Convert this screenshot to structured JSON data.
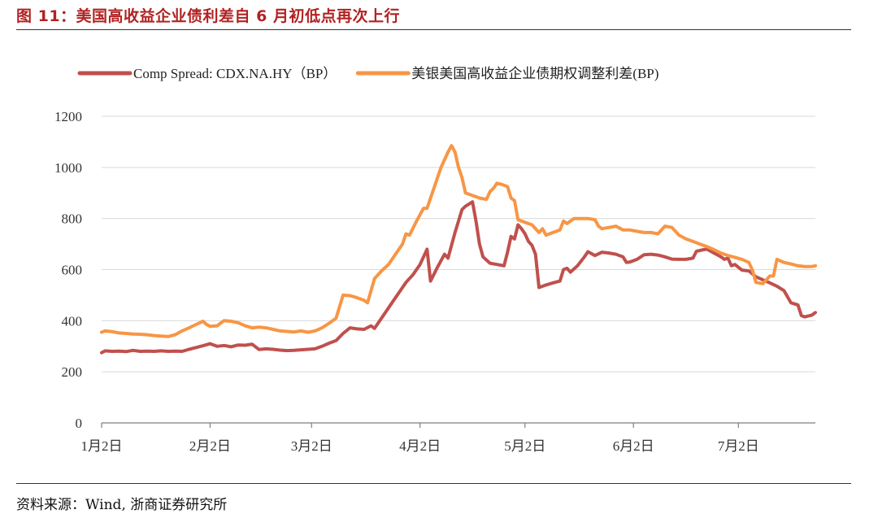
{
  "header": {
    "title": "图 11：美国高收益企业债利差自 6 月初低点再次上行"
  },
  "footer": {
    "source": "资料来源：Wind, 浙商证券研究所"
  },
  "chart_data": {
    "type": "line",
    "title": "",
    "xlabel": "",
    "ylabel": "",
    "ylim": [
      0,
      1200
    ],
    "yticks": [
      0,
      200,
      400,
      600,
      800,
      1000,
      1200
    ],
    "x_unit": "day index from 1月2日",
    "xlim": [
      0,
      204
    ],
    "xticks": [
      {
        "x": 0,
        "label": "1月2日"
      },
      {
        "x": 31,
        "label": "2月2日"
      },
      {
        "x": 60,
        "label": "3月2日"
      },
      {
        "x": 91,
        "label": "4月2日"
      },
      {
        "x": 121,
        "label": "5月2日"
      },
      {
        "x": 152,
        "label": "6月2日"
      },
      {
        "x": 182,
        "label": "7月2日"
      }
    ],
    "grid": true,
    "legend_position": "top",
    "series": [
      {
        "name": "Comp Spread: CDX.NA.HY（BP）",
        "color": "#c0504d",
        "points": [
          [
            0,
            275
          ],
          [
            1,
            282
          ],
          [
            3,
            280
          ],
          [
            5,
            281
          ],
          [
            7,
            279
          ],
          [
            9,
            284
          ],
          [
            11,
            280
          ],
          [
            13,
            281
          ],
          [
            15,
            280
          ],
          [
            17,
            282
          ],
          [
            19,
            280
          ],
          [
            21,
            281
          ],
          [
            23,
            280
          ],
          [
            25,
            288
          ],
          [
            27,
            295
          ],
          [
            29,
            302
          ],
          [
            31,
            310
          ],
          [
            33,
            300
          ],
          [
            35,
            303
          ],
          [
            37,
            298
          ],
          [
            39,
            305
          ],
          [
            41,
            304
          ],
          [
            43,
            308
          ],
          [
            45,
            287
          ],
          [
            47,
            290
          ],
          [
            49,
            288
          ],
          [
            51,
            285
          ],
          [
            53,
            283
          ],
          [
            55,
            284
          ],
          [
            57,
            286
          ],
          [
            59,
            288
          ],
          [
            61,
            290
          ],
          [
            63,
            300
          ],
          [
            65,
            312
          ],
          [
            67,
            322
          ],
          [
            69,
            350
          ],
          [
            71,
            372
          ],
          [
            73,
            368
          ],
          [
            75,
            366
          ],
          [
            77,
            380
          ],
          [
            78,
            370
          ],
          [
            79,
            390
          ],
          [
            81,
            430
          ],
          [
            83,
            470
          ],
          [
            85,
            510
          ],
          [
            87,
            550
          ],
          [
            89,
            580
          ],
          [
            91,
            620
          ],
          [
            93,
            680
          ],
          [
            94,
            555
          ],
          [
            96,
            610
          ],
          [
            98,
            660
          ],
          [
            99,
            645
          ],
          [
            101,
            745
          ],
          [
            103,
            835
          ],
          [
            104,
            848
          ],
          [
            106,
            865
          ],
          [
            107,
            790
          ],
          [
            108,
            700
          ],
          [
            109,
            650
          ],
          [
            111,
            625
          ],
          [
            113,
            620
          ],
          [
            115,
            615
          ],
          [
            116,
            668
          ],
          [
            117,
            730
          ],
          [
            118,
            720
          ],
          [
            119,
            775
          ],
          [
            120,
            760
          ],
          [
            121,
            740
          ],
          [
            122,
            710
          ],
          [
            123,
            695
          ],
          [
            124,
            660
          ],
          [
            125,
            530
          ],
          [
            127,
            540
          ],
          [
            129,
            548
          ],
          [
            131,
            555
          ],
          [
            132,
            600
          ],
          [
            133,
            605
          ],
          [
            134,
            590
          ],
          [
            136,
            615
          ],
          [
            138,
            650
          ],
          [
            139,
            670
          ],
          [
            141,
            655
          ],
          [
            143,
            668
          ],
          [
            145,
            665
          ],
          [
            147,
            660
          ],
          [
            149,
            650
          ],
          [
            150,
            628
          ],
          [
            151,
            630
          ],
          [
            153,
            640
          ],
          [
            155,
            658
          ],
          [
            157,
            660
          ],
          [
            159,
            657
          ],
          [
            161,
            650
          ],
          [
            163,
            641
          ],
          [
            165,
            640
          ],
          [
            167,
            640
          ],
          [
            169,
            645
          ],
          [
            170,
            672
          ],
          [
            172,
            678
          ],
          [
            173,
            680
          ],
          [
            175,
            665
          ],
          [
            177,
            650
          ],
          [
            178,
            640
          ],
          [
            179,
            645
          ],
          [
            180,
            615
          ],
          [
            181,
            620
          ],
          [
            183,
            598
          ],
          [
            185,
            595
          ],
          [
            187,
            572
          ],
          [
            189,
            560
          ],
          [
            191,
            548
          ],
          [
            193,
            535
          ],
          [
            195,
            518
          ],
          [
            197,
            470
          ],
          [
            199,
            462
          ],
          [
            200,
            420
          ],
          [
            201,
            415
          ],
          [
            203,
            422
          ],
          [
            204,
            432
          ]
        ]
      },
      {
        "name": "美银美国高收益企业债期权调整利差(BP)",
        "color": "#f79646",
        "points": [
          [
            0,
            355
          ],
          [
            1,
            360
          ],
          [
            3,
            357
          ],
          [
            5,
            352
          ],
          [
            7,
            350
          ],
          [
            9,
            348
          ],
          [
            11,
            347
          ],
          [
            13,
            345
          ],
          [
            15,
            342
          ],
          [
            17,
            340
          ],
          [
            19,
            338
          ],
          [
            21,
            345
          ],
          [
            23,
            360
          ],
          [
            25,
            372
          ],
          [
            27,
            385
          ],
          [
            29,
            398
          ],
          [
            30,
            385
          ],
          [
            31,
            378
          ],
          [
            33,
            380
          ],
          [
            35,
            400
          ],
          [
            37,
            398
          ],
          [
            39,
            392
          ],
          [
            41,
            380
          ],
          [
            43,
            372
          ],
          [
            45,
            375
          ],
          [
            47,
            372
          ],
          [
            49,
            366
          ],
          [
            51,
            360
          ],
          [
            53,
            358
          ],
          [
            55,
            356
          ],
          [
            57,
            360
          ],
          [
            59,
            355
          ],
          [
            61,
            360
          ],
          [
            63,
            372
          ],
          [
            65,
            390
          ],
          [
            67,
            410
          ],
          [
            69,
            500
          ],
          [
            71,
            498
          ],
          [
            73,
            490
          ],
          [
            75,
            480
          ],
          [
            76,
            470
          ],
          [
            78,
            565
          ],
          [
            80,
            595
          ],
          [
            82,
            620
          ],
          [
            84,
            660
          ],
          [
            86,
            700
          ],
          [
            87,
            740
          ],
          [
            88,
            735
          ],
          [
            90,
            790
          ],
          [
            92,
            840
          ],
          [
            93,
            840
          ],
          [
            95,
            920
          ],
          [
            97,
            1000
          ],
          [
            99,
            1060
          ],
          [
            100,
            1085
          ],
          [
            101,
            1060
          ],
          [
            102,
            1000
          ],
          [
            103,
            960
          ],
          [
            104,
            900
          ],
          [
            106,
            890
          ],
          [
            108,
            880
          ],
          [
            110,
            875
          ],
          [
            111,
            905
          ],
          [
            112,
            918
          ],
          [
            113,
            938
          ],
          [
            114,
            935
          ],
          [
            116,
            925
          ],
          [
            117,
            880
          ],
          [
            118,
            870
          ],
          [
            119,
            795
          ],
          [
            121,
            785
          ],
          [
            123,
            775
          ],
          [
            125,
            745
          ],
          [
            126,
            760
          ],
          [
            127,
            735
          ],
          [
            129,
            745
          ],
          [
            131,
            755
          ],
          [
            132,
            790
          ],
          [
            133,
            780
          ],
          [
            135,
            800
          ],
          [
            137,
            800
          ],
          [
            139,
            800
          ],
          [
            141,
            795
          ],
          [
            142,
            770
          ],
          [
            143,
            760
          ],
          [
            145,
            765
          ],
          [
            147,
            770
          ],
          [
            149,
            755
          ],
          [
            151,
            755
          ],
          [
            153,
            750
          ],
          [
            155,
            745
          ],
          [
            157,
            745
          ],
          [
            159,
            740
          ],
          [
            161,
            770
          ],
          [
            163,
            765
          ],
          [
            165,
            735
          ],
          [
            167,
            720
          ],
          [
            169,
            710
          ],
          [
            171,
            700
          ],
          [
            173,
            690
          ],
          [
            175,
            678
          ],
          [
            177,
            665
          ],
          [
            179,
            655
          ],
          [
            181,
            648
          ],
          [
            183,
            640
          ],
          [
            185,
            628
          ],
          [
            186,
            598
          ],
          [
            187,
            550
          ],
          [
            189,
            545
          ],
          [
            191,
            575
          ],
          [
            192,
            575
          ],
          [
            193,
            640
          ],
          [
            195,
            628
          ],
          [
            197,
            622
          ],
          [
            199,
            615
          ],
          [
            201,
            612
          ],
          [
            203,
            612
          ],
          [
            204,
            615
          ]
        ]
      }
    ]
  }
}
